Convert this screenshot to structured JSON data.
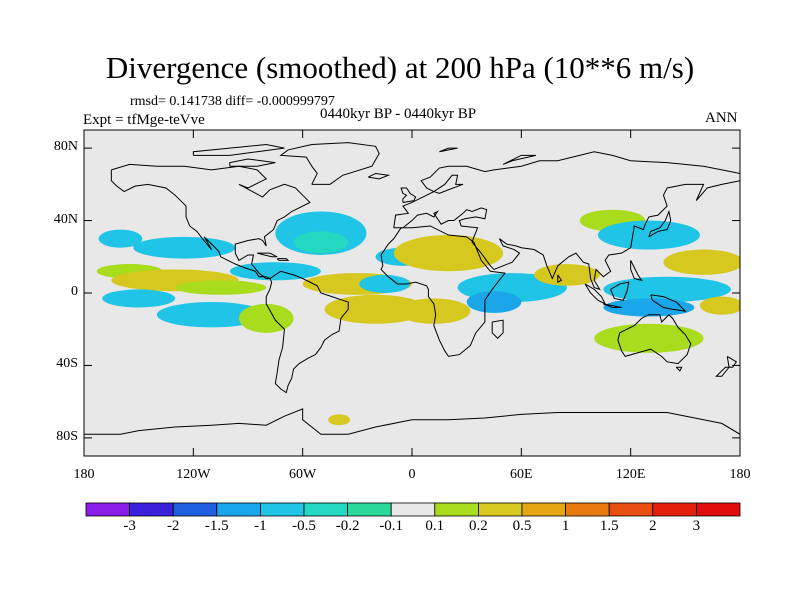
{
  "chart_data": {
    "type": "heatmap",
    "title": "Divergence (smoothed) at 200 hPa (10**6 m/s)",
    "stats_text": "rmsd= 0.141738 diff= -0.000999797",
    "subtitle": "0440kyr BP - 0440kyr BP",
    "left_label": "Expt = tfMge-teVve",
    "right_label": "ANN",
    "x_range": [
      -180,
      180
    ],
    "y_range": [
      -90,
      90
    ],
    "y_ticks": [
      {
        "value": 80,
        "label": "80N"
      },
      {
        "value": 40,
        "label": "40N"
      },
      {
        "value": 0,
        "label": "0"
      },
      {
        "value": -40,
        "label": "40S"
      },
      {
        "value": -80,
        "label": "80S"
      }
    ],
    "x_ticks": [
      {
        "value": -180,
        "label": "180"
      },
      {
        "value": -120,
        "label": "120W"
      },
      {
        "value": -60,
        "label": "60W"
      },
      {
        "value": 0,
        "label": "0"
      },
      {
        "value": 60,
        "label": "60E"
      },
      {
        "value": 120,
        "label": "120E"
      },
      {
        "value": 180,
        "label": "180"
      }
    ],
    "colorbar": {
      "levels": [
        "-3",
        "-2",
        "-1.5",
        "-1",
        "-0.5",
        "-0.2",
        "-0.1",
        "0.1",
        "0.2",
        "0.5",
        "1",
        "1.5",
        "2",
        "3"
      ],
      "colors": [
        "#8a1ce8",
        "#3a22dd",
        "#1e5fe0",
        "#1aa6e8",
        "#20c4e6",
        "#23d8c0",
        "#2ad89a",
        "#e8e8e8",
        "#a8dc1c",
        "#d6c81e",
        "#e6a614",
        "#e87a10",
        "#e84e10",
        "#e4200c",
        "#e00c0c"
      ]
    },
    "field_colors": {
      "background": "#e8e8e8",
      "pos_weak": "#a8dc1c",
      "pos_mid": "#d6c81e",
      "neg_weak": "#23d8c0",
      "neg_mid": "#20c4e6",
      "neg_strong": "#1aa6e8",
      "coast": "#000000"
    },
    "blobs": [
      {
        "lon": -125,
        "lat": 25,
        "rx": 28,
        "ry": 6,
        "c": "neg_mid"
      },
      {
        "lon": -155,
        "lat": 12,
        "rx": 18,
        "ry": 4,
        "c": "pos_weak"
      },
      {
        "lon": -130,
        "lat": 7,
        "rx": 35,
        "ry": 6,
        "c": "pos_mid"
      },
      {
        "lon": -105,
        "lat": 3,
        "rx": 25,
        "ry": 4,
        "c": "pos_weak"
      },
      {
        "lon": -150,
        "lat": -3,
        "rx": 20,
        "ry": 5,
        "c": "neg_mid"
      },
      {
        "lon": -110,
        "lat": -12,
        "rx": 30,
        "ry": 7,
        "c": "neg_mid"
      },
      {
        "lon": -80,
        "lat": -14,
        "rx": 15,
        "ry": 8,
        "c": "pos_weak"
      },
      {
        "lon": -50,
        "lat": 33,
        "rx": 25,
        "ry": 12,
        "c": "neg_mid"
      },
      {
        "lon": -50,
        "lat": 28,
        "rx": 15,
        "ry": 6,
        "c": "neg_weak"
      },
      {
        "lon": -75,
        "lat": 12,
        "rx": 25,
        "ry": 5,
        "c": "neg_mid"
      },
      {
        "lon": -30,
        "lat": 5,
        "rx": 30,
        "ry": 6,
        "c": "pos_mid"
      },
      {
        "lon": -15,
        "lat": 5,
        "rx": 14,
        "ry": 5,
        "c": "neg_mid"
      },
      {
        "lon": -20,
        "lat": -9,
        "rx": 28,
        "ry": 8,
        "c": "pos_mid"
      },
      {
        "lon": 12,
        "lat": -10,
        "rx": 20,
        "ry": 7,
        "c": "pos_mid"
      },
      {
        "lon": -5,
        "lat": 20,
        "rx": 15,
        "ry": 5,
        "c": "neg_mid"
      },
      {
        "lon": 20,
        "lat": 22,
        "rx": 30,
        "ry": 10,
        "c": "pos_mid"
      },
      {
        "lon": 55,
        "lat": 3,
        "rx": 30,
        "ry": 8,
        "c": "neg_mid"
      },
      {
        "lon": 45,
        "lat": -5,
        "rx": 15,
        "ry": 6,
        "c": "neg_strong"
      },
      {
        "lon": 85,
        "lat": 10,
        "rx": 18,
        "ry": 6,
        "c": "pos_mid"
      },
      {
        "lon": 110,
        "lat": 40,
        "rx": 18,
        "ry": 6,
        "c": "pos_weak"
      },
      {
        "lon": 130,
        "lat": 32,
        "rx": 28,
        "ry": 8,
        "c": "neg_mid"
      },
      {
        "lon": 160,
        "lat": 17,
        "rx": 22,
        "ry": 7,
        "c": "pos_mid"
      },
      {
        "lon": 140,
        "lat": 2,
        "rx": 35,
        "ry": 7,
        "c": "neg_mid"
      },
      {
        "lon": 130,
        "lat": -8,
        "rx": 25,
        "ry": 5,
        "c": "neg_strong"
      },
      {
        "lon": 130,
        "lat": -25,
        "rx": 30,
        "ry": 8,
        "c": "pos_weak"
      },
      {
        "lon": 170,
        "lat": -7,
        "rx": 12,
        "ry": 5,
        "c": "pos_mid"
      },
      {
        "lon": -160,
        "lat": 30,
        "rx": 12,
        "ry": 5,
        "c": "neg_mid"
      },
      {
        "lon": -40,
        "lat": -70,
        "rx": 6,
        "ry": 3,
        "c": "pos_mid"
      }
    ]
  }
}
